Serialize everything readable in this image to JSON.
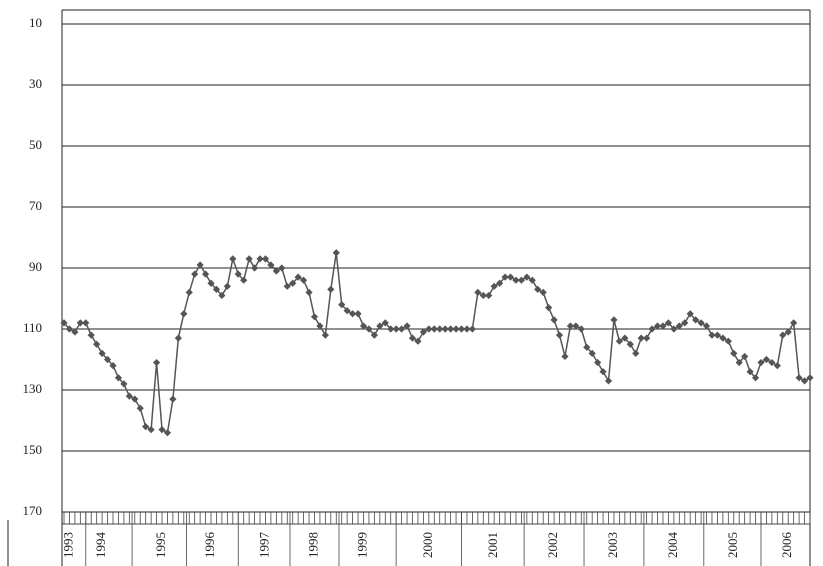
{
  "chart_data": {
    "type": "line",
    "categories": [
      null,
      "1993",
      null,
      null,
      null,
      null,
      null,
      "1994",
      null,
      null,
      null,
      null,
      null,
      null,
      null,
      null,
      null,
      null,
      "1995",
      null,
      null,
      null,
      null,
      null,
      null,
      null,
      null,
      "1996",
      null,
      null,
      null,
      null,
      null,
      null,
      null,
      null,
      null,
      "1997",
      null,
      null,
      null,
      null,
      null,
      null,
      null,
      null,
      "1998",
      null,
      null,
      null,
      null,
      null,
      null,
      null,
      null,
      "1999",
      null,
      null,
      null,
      null,
      null,
      null,
      null,
      null,
      null,
      null,
      null,
      "2000",
      null,
      null,
      null,
      null,
      null,
      null,
      null,
      null,
      null,
      null,
      null,
      "2001",
      null,
      null,
      null,
      null,
      null,
      null,
      null,
      null,
      null,
      null,
      "2002",
      null,
      null,
      null,
      null,
      null,
      null,
      null,
      null,
      null,
      null,
      "2003",
      null,
      null,
      null,
      null,
      null,
      null,
      null,
      null,
      null,
      null,
      "2004",
      null,
      null,
      null,
      null,
      null,
      null,
      null,
      null,
      null,
      null,
      "2005",
      null,
      null,
      null,
      null,
      null,
      null,
      null,
      null,
      null,
      "2006",
      null,
      null,
      null,
      null
    ],
    "series": [
      {
        "color": "#555555",
        "values": [
          108,
          110,
          111,
          108,
          108,
          112,
          115,
          118,
          120,
          122,
          126,
          128,
          132,
          133,
          136,
          142,
          143,
          121,
          143,
          144,
          133,
          113,
          105,
          98,
          92,
          89,
          92,
          95,
          97,
          99,
          96,
          87,
          92,
          94,
          87,
          90,
          87,
          87,
          89,
          91,
          90,
          96,
          95,
          93,
          94,
          98,
          106,
          109,
          112,
          97,
          85,
          102,
          104,
          105,
          105,
          109,
          110,
          112,
          109,
          108,
          110,
          110,
          110,
          109,
          113,
          114,
          111,
          110,
          110,
          110,
          110,
          110,
          110,
          110,
          110,
          110,
          98,
          99,
          99,
          96,
          95,
          93,
          93,
          94,
          94,
          93,
          94,
          97,
          98,
          103,
          107,
          112,
          119,
          109,
          109,
          110,
          116,
          118,
          121,
          124,
          127,
          107,
          114,
          113,
          115,
          118,
          113,
          113,
          110,
          109,
          109,
          108,
          110,
          109,
          108,
          105,
          107,
          108,
          109,
          112,
          112,
          113,
          114,
          118,
          121,
          119,
          124,
          126,
          121,
          120,
          121,
          122,
          112,
          111,
          108,
          126,
          127,
          126
        ]
      }
    ],
    "ylim": [
      10,
      170
    ],
    "inverted": true,
    "yticks": [
      10,
      30,
      50,
      70,
      90,
      110,
      130,
      150,
      170
    ],
    "grid": true
  }
}
